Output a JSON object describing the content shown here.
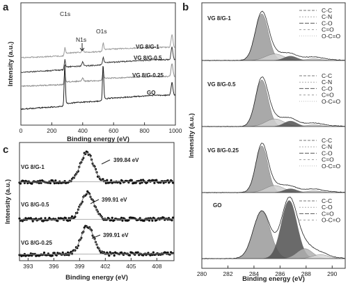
{
  "chart_data": [
    {
      "panel": "a",
      "type": "line",
      "xlabel": "Binding energy (eV)",
      "ylabel": "Intensity (a.u.)",
      "xlim": [
        0,
        1000
      ],
      "xticks": [
        "0",
        "200",
        "400",
        "600",
        "800",
        "1000"
      ],
      "peak_labels": [
        {
          "text": "C1s",
          "x": 284
        },
        {
          "text": "N1s",
          "x": 400
        },
        {
          "text": "O1s",
          "x": 532
        }
      ],
      "series": [
        {
          "name": "VG 8/G-1",
          "color": "#9a9a9a",
          "c1s": 0.07,
          "n1s": 0.04,
          "o1s": 0.09
        },
        {
          "name": "VG 8/G-0.5",
          "color": "#3a3a3a",
          "c1s": 0.09,
          "n1s": 0.05,
          "o1s": 0.08
        },
        {
          "name": "VG 8/G-0.25",
          "color": "#8a8a8a",
          "c1s": 0.13,
          "n1s": 0.04,
          "o1s": 0.1
        },
        {
          "name": "GO",
          "color": "#202020",
          "c1s": 0.48,
          "n1s": 0.0,
          "o1s": 0.43
        }
      ]
    },
    {
      "panel": "b",
      "type": "line",
      "xlabel": "Binding energy (eV)",
      "ylabel": "Intensity (a.u.)",
      "xlim": [
        280,
        291
      ],
      "xticks": [
        "280",
        "282",
        "284",
        "286",
        "288",
        "290"
      ],
      "series": [
        {
          "sample": "VG 8/G-1",
          "legend": [
            "C-C",
            "C-N",
            "C-O",
            "C=O",
            "O-C=O"
          ],
          "components": [
            {
              "label": "C-C",
              "center": 284.6,
              "height": 0.86,
              "width": 0.5,
              "color": "#9a9a9a"
            },
            {
              "label": "C-N",
              "center": 285.6,
              "height": 0.12,
              "width": 0.7,
              "color": "#d0d0d0"
            },
            {
              "label": "C-O",
              "center": 286.8,
              "height": 0.08,
              "width": 0.5,
              "color": "#505050"
            },
            {
              "label": "O-C=O",
              "center": 288.6,
              "height": 0.03,
              "width": 0.6,
              "color": "#b8b8b8"
            }
          ]
        },
        {
          "sample": "VG 8/G-0.5",
          "legend": [
            "C-C",
            "C-N",
            "C-O",
            "C=O",
            "O-C=O"
          ],
          "components": [
            {
              "label": "C-C",
              "center": 284.6,
              "height": 0.86,
              "width": 0.48,
              "color": "#9a9a9a"
            },
            {
              "label": "C-N",
              "center": 285.6,
              "height": 0.14,
              "width": 0.7,
              "color": "#d0d0d0"
            },
            {
              "label": "C-O",
              "center": 286.8,
              "height": 0.1,
              "width": 0.5,
              "color": "#505050"
            },
            {
              "label": "O-C=O",
              "center": 288.6,
              "height": 0.03,
              "width": 0.6,
              "color": "#b8b8b8"
            }
          ]
        },
        {
          "sample": "VG 8/G-0.25",
          "legend": [
            "C-C",
            "C-N",
            "C-O",
            "C=O",
            "O-C=O"
          ],
          "components": [
            {
              "label": "C-C",
              "center": 284.6,
              "height": 0.86,
              "width": 0.46,
              "color": "#9a9a9a"
            },
            {
              "label": "C-N",
              "center": 285.6,
              "height": 0.13,
              "width": 0.7,
              "color": "#d0d0d0"
            },
            {
              "label": "C-O",
              "center": 286.8,
              "height": 0.07,
              "width": 0.5,
              "color": "#505050"
            },
            {
              "label": "O-C=O",
              "center": 288.6,
              "height": 0.03,
              "width": 0.6,
              "color": "#b8b8b8"
            }
          ]
        },
        {
          "sample": "GO",
          "legend": [
            "C-C",
            "C-O",
            "C=O",
            "O-C=O"
          ],
          "components": [
            {
              "label": "C-C",
              "center": 284.6,
              "height": 0.72,
              "width": 0.65,
              "color": "#9a9a9a"
            },
            {
              "label": "C-O",
              "center": 286.7,
              "height": 0.88,
              "width": 0.6,
              "color": "#505050"
            },
            {
              "label": "C=O",
              "center": 287.9,
              "height": 0.15,
              "width": 0.6,
              "color": "#b0b0b0"
            },
            {
              "label": "O-C=O",
              "center": 289.1,
              "height": 0.06,
              "width": 0.6,
              "color": "#d8d8d8"
            }
          ]
        }
      ]
    },
    {
      "panel": "c",
      "type": "scatter",
      "xlabel": "Binding energy (eV)",
      "ylabel": "Intensity (a.u.)",
      "xlim": [
        392,
        410
      ],
      "xticks": [
        "393",
        "396",
        "399",
        "402",
        "405",
        "408"
      ],
      "series": [
        {
          "name": "VG 8/G-1",
          "peak": 399.84,
          "peak_label": "399.84 eV"
        },
        {
          "name": "VG 8/G-0.5",
          "peak": 399.91,
          "peak_label": "399.91 eV"
        },
        {
          "name": "VG 8/G-0.25",
          "peak": 399.91,
          "peak_label": "399.91 eV"
        }
      ]
    }
  ]
}
